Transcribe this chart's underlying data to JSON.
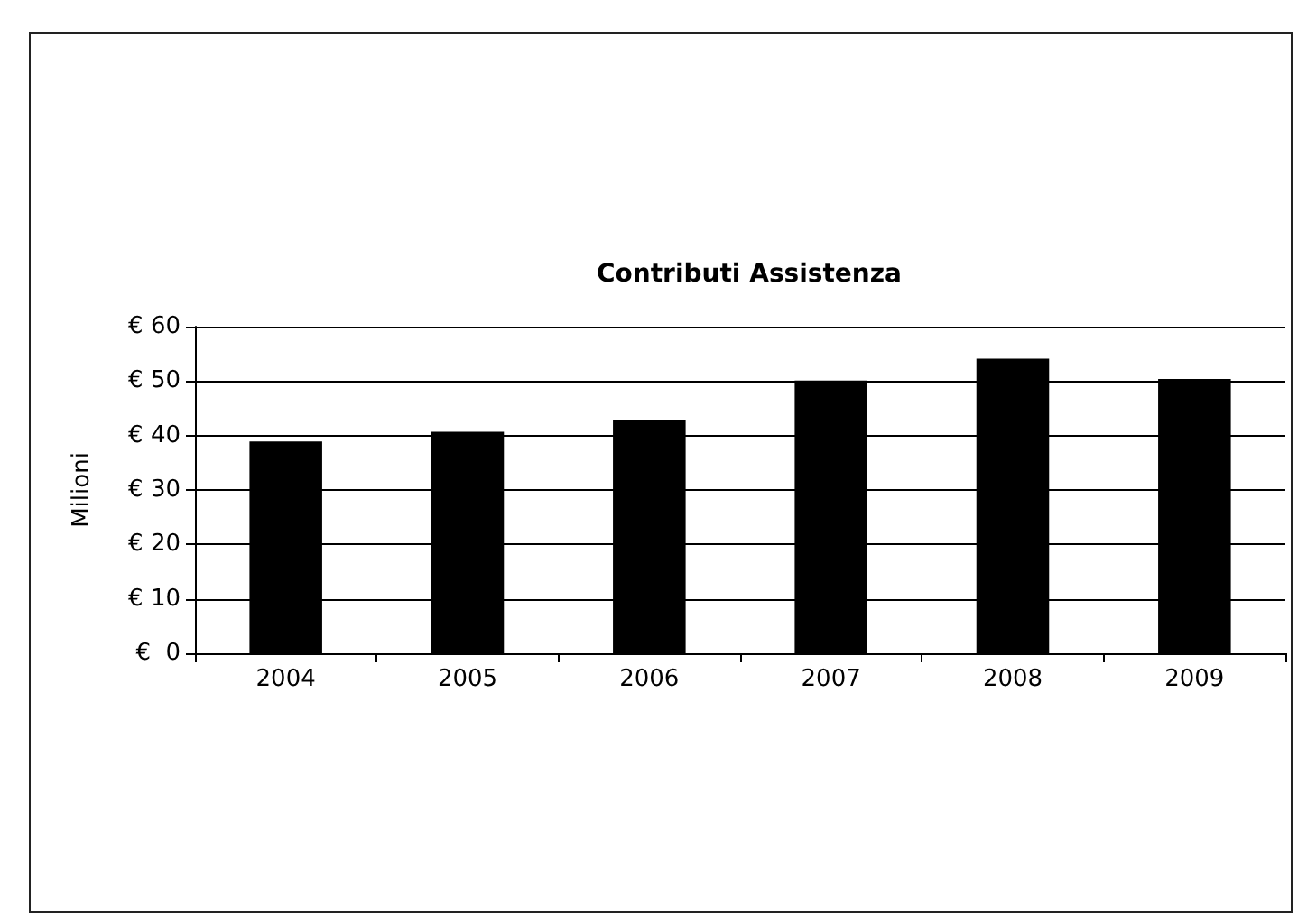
{
  "chart_data": {
    "type": "bar",
    "title": "Contributi Assistenza",
    "ylabel": "Milioni",
    "categories": [
      "2004",
      "2005",
      "2006",
      "2007",
      "2008",
      "2009"
    ],
    "values": [
      38.9,
      40.7,
      42.9,
      50.1,
      54.1,
      50.4
    ],
    "color": "#000000",
    "ylim": [
      0,
      60
    ],
    "yticks": [
      {
        "value": 0,
        "label": "€  0"
      },
      {
        "value": 10,
        "label": "€ 10"
      },
      {
        "value": 20,
        "label": "€ 20"
      },
      {
        "value": 30,
        "label": "€ 30"
      },
      {
        "value": 40,
        "label": "€ 40"
      },
      {
        "value": 50,
        "label": "€ 50"
      },
      {
        "value": 60,
        "label": "€ 60"
      }
    ],
    "grid": "y"
  }
}
